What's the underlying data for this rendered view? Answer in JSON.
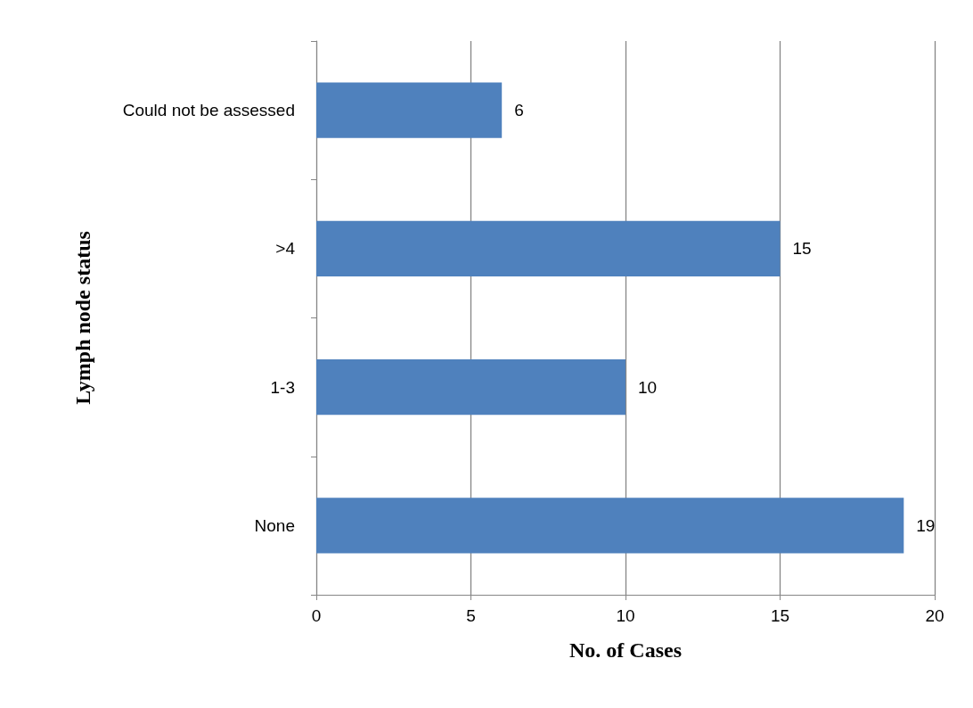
{
  "chart_data": {
    "type": "bar",
    "orientation": "horizontal",
    "xlabel": "No. of Cases",
    "ylabel": "Lymph node status",
    "categories": [
      "Could not be assessed",
      ">4",
      "1-3",
      "None"
    ],
    "values": [
      6,
      15,
      10,
      19
    ],
    "color": "#4f81bd",
    "xlim": [
      0,
      20
    ],
    "xticks": [
      0,
      5,
      10,
      15,
      20
    ],
    "grid": "x",
    "data_labels": true
  }
}
